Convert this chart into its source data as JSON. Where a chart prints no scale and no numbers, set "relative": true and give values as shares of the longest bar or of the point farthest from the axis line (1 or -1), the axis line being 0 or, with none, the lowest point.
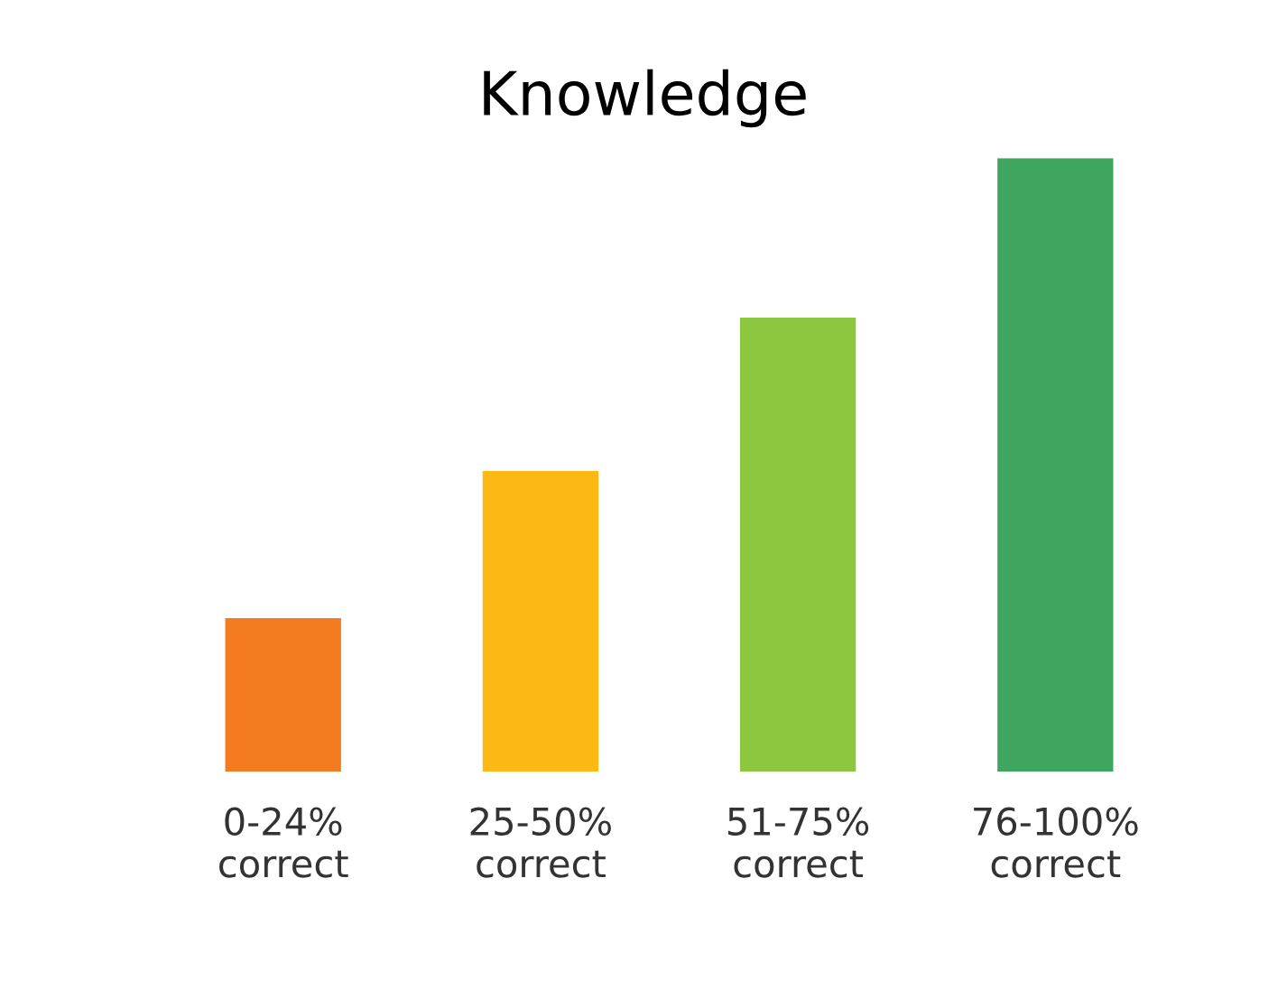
{
  "chart_data": {
    "type": "bar",
    "title": "Knowledge",
    "relative": true,
    "categories": [
      "0-24%\ncorrect",
      "25-50%\ncorrect",
      "51-75%\ncorrect",
      "76-100%\ncorrect"
    ],
    "values": [
      0.25,
      0.49,
      0.74,
      1
    ],
    "colors": [
      "#f47b20",
      "#fdb913",
      "#8dc63f",
      "#3fa65f"
    ],
    "grid": false,
    "legend": false
  }
}
